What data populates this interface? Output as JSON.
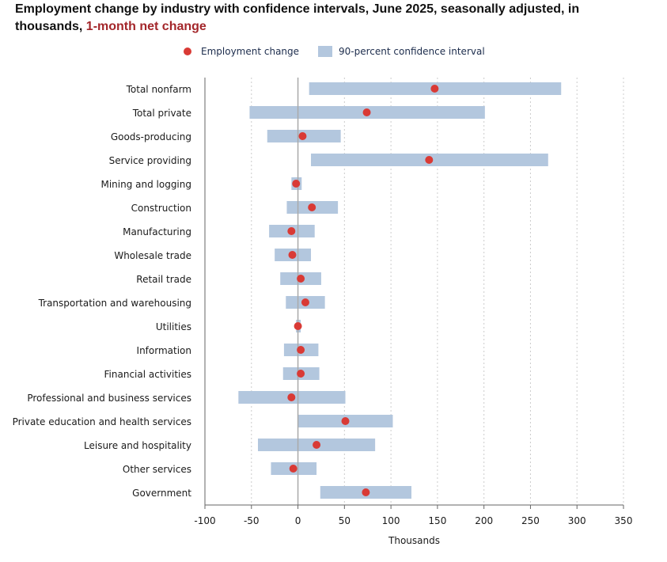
{
  "header": {
    "title_main": "Employment change by industry with confidence intervals, June 2025, seasonally adjusted, in thousands,",
    "title_sub": "1-month net change"
  },
  "legend": {
    "point_label": "Employment change",
    "interval_label": "90-percent confidence interval"
  },
  "colors": {
    "point": "#d93a35",
    "interval": "#b3c7de",
    "title_sub": "#a3262a",
    "zero_line": "#a9a9a9",
    "grid": "#cccccc",
    "axis": "#666666"
  },
  "chart_data": {
    "type": "dot-with-interval",
    "title": "Employment change by industry with confidence intervals, June 2025, seasonally adjusted, in thousands, 1-month net change",
    "xlabel": "Thousands",
    "ylabel": "",
    "xlim": [
      -100,
      350
    ],
    "xticks": [
      -100,
      -50,
      0,
      50,
      100,
      150,
      200,
      250,
      300,
      350
    ],
    "grid": "vertical dotted",
    "legend_position": "top",
    "categories": [
      "Total nonfarm",
      "Total private",
      "Goods-producing",
      "Service providing",
      "Mining and logging",
      "Construction",
      "Manufacturing",
      "Wholesale trade",
      "Retail trade",
      "Transportation and warehousing",
      "Utilities",
      "Information",
      "Financial activities",
      "Professional and business services",
      "Private education and health services",
      "Leisure and hospitality",
      "Other services",
      "Government"
    ],
    "series": [
      {
        "name": "Employment change",
        "values": [
          147,
          74,
          5,
          141,
          -2,
          15,
          -7,
          -6,
          3,
          8,
          0,
          3,
          3,
          -7,
          51,
          20,
          -5,
          73
        ]
      },
      {
        "name": "90-percent confidence interval",
        "low": [
          12,
          -52,
          -33,
          14,
          -7,
          -12,
          -31,
          -25,
          -19,
          -13,
          -2,
          -15,
          -16,
          -64,
          0,
          -43,
          -29,
          24
        ],
        "high": [
          283,
          201,
          46,
          269,
          4,
          43,
          18,
          14,
          25,
          29,
          3,
          22,
          23,
          51,
          102,
          83,
          20,
          122
        ]
      }
    ]
  }
}
